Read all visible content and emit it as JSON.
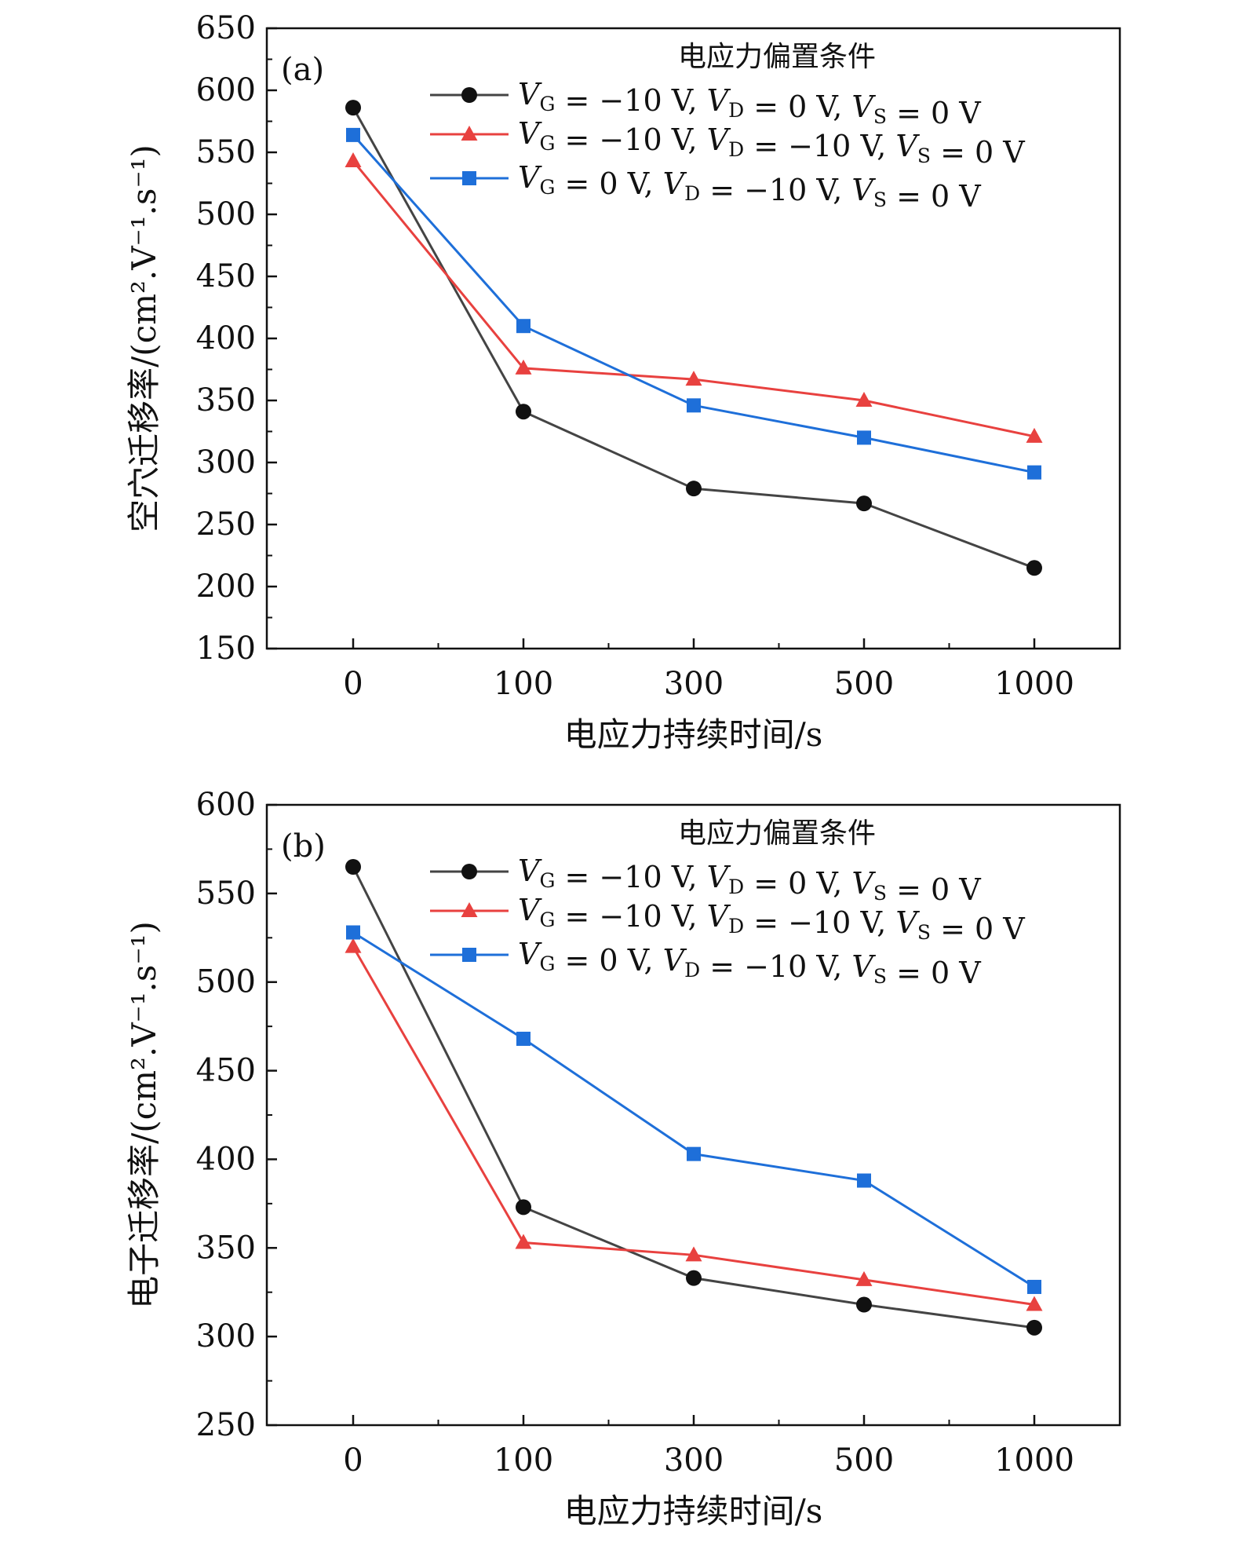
{
  "chart_data": [
    {
      "type": "line",
      "panel_label": "(a)",
      "categories": [
        "0",
        "100",
        "300",
        "500",
        "1000"
      ],
      "xlabel": "电应力持续时间/s",
      "ylabel": "空穴迁移率/(cm².V⁻¹.s⁻¹)",
      "ylim": [
        150,
        650
      ],
      "yticks": [
        150,
        200,
        250,
        300,
        350,
        400,
        450,
        500,
        550,
        600,
        650
      ],
      "legend_title": "电应力偏置条件",
      "legend_position": "top-right",
      "series": [
        {
          "name": "VG = −10 V, VD = 0 V, VS = 0 V",
          "marker": "circle",
          "color": "#111111",
          "line_color": "#444444",
          "legend": {
            "g": "−10 V",
            "d": "0 V",
            "s": "0 V"
          },
          "values": [
            586,
            341,
            279,
            267,
            215
          ]
        },
        {
          "name": "VG = −10 V, VD = −10 V, VS = 0 V",
          "marker": "triangle",
          "color": "#e8413f",
          "line_color": "#e8413f",
          "legend": {
            "g": "−10 V",
            "d": "−10 V",
            "s": "0 V"
          },
          "values": [
            543,
            376,
            367,
            350,
            321
          ]
        },
        {
          "name": "VG = 0 V, VD = −10 V, VS = 0 V",
          "marker": "square",
          "color": "#1e6fd9",
          "line_color": "#1e6fd9",
          "legend": {
            "g": "0 V",
            "d": "−10 V",
            "s": "0 V"
          },
          "values": [
            564,
            410,
            346,
            320,
            292
          ]
        }
      ]
    },
    {
      "type": "line",
      "panel_label": "(b)",
      "categories": [
        "0",
        "100",
        "300",
        "500",
        "1000"
      ],
      "xlabel": "电应力持续时间/s",
      "ylabel": "电子迁移率/(cm².V⁻¹.s⁻¹)",
      "ylim": [
        250,
        600
      ],
      "yticks": [
        250,
        300,
        350,
        400,
        450,
        500,
        550,
        600
      ],
      "legend_title": "电应力偏置条件",
      "legend_position": "top-right",
      "series": [
        {
          "name": "VG = −10 V, VD = 0 V, VS = 0 V",
          "marker": "circle",
          "color": "#111111",
          "line_color": "#444444",
          "legend": {
            "g": "−10 V",
            "d": "0 V",
            "s": "0 V"
          },
          "values": [
            565,
            373,
            333,
            318,
            305
          ]
        },
        {
          "name": "VG = −10 V, VD = −10 V, VS = 0 V",
          "marker": "triangle",
          "color": "#e8413f",
          "line_color": "#e8413f",
          "legend": {
            "g": "−10 V",
            "d": "−10 V",
            "s": "0 V"
          },
          "values": [
            520,
            353,
            346,
            332,
            318
          ]
        },
        {
          "name": "VG = 0 V, VD = −10 V, VS = 0 V",
          "marker": "square",
          "color": "#1e6fd9",
          "line_color": "#1e6fd9",
          "legend": {
            "g": "0 V",
            "d": "−10 V",
            "s": "0 V"
          },
          "values": [
            528,
            468,
            403,
            388,
            328
          ]
        }
      ]
    }
  ]
}
